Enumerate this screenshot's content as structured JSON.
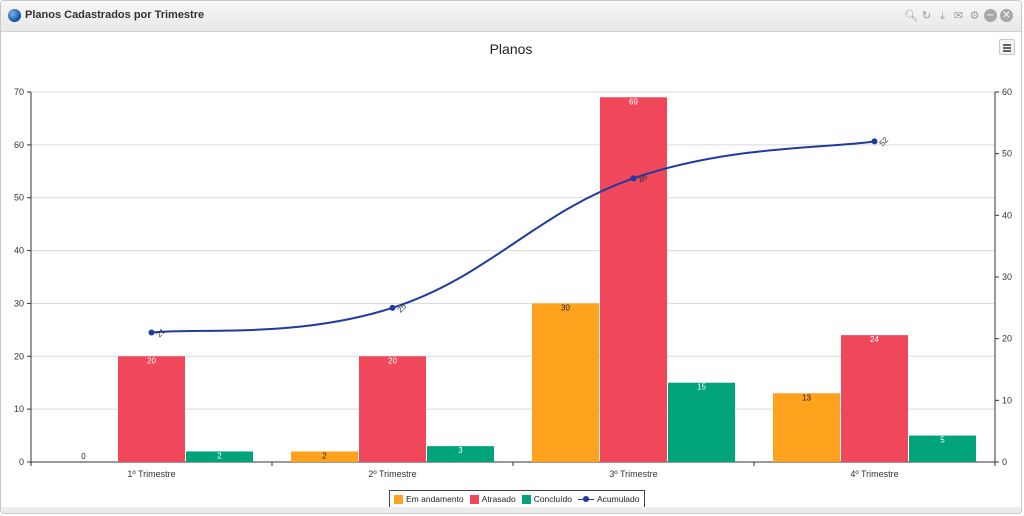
{
  "window": {
    "title": "Planos Cadastrados por Trimestre"
  },
  "toolbar_icons": [
    "search-icon",
    "refresh-icon",
    "download-icon",
    "mail-icon",
    "gear-icon",
    "minimize-icon",
    "close-icon"
  ],
  "chart_data": {
    "type": "bar",
    "title": "Planos",
    "categories": [
      "1º Trimestre",
      "2º Trimestre",
      "3º Trimestre",
      "4º Trimestre"
    ],
    "series": [
      {
        "name": "Em andamento",
        "type": "bar",
        "axis": "left",
        "color": "#ffa21e",
        "values": [
          0,
          2,
          30,
          13
        ]
      },
      {
        "name": "Atrasado",
        "type": "bar",
        "axis": "left",
        "color": "#f0475a",
        "values": [
          20,
          20,
          69,
          24
        ]
      },
      {
        "name": "Concluído",
        "type": "bar",
        "axis": "left",
        "color": "#00a37a",
        "values": [
          2,
          3,
          15,
          5
        ]
      },
      {
        "name": "Acumulado",
        "type": "line",
        "axis": "right",
        "color": "#1f3b9e",
        "values": [
          21,
          25,
          46,
          52
        ]
      }
    ],
    "y_left": {
      "min": 0,
      "max": 70,
      "ticks": [
        0,
        10,
        20,
        30,
        40,
        50,
        60,
        70
      ]
    },
    "y_right": {
      "min": 0,
      "max": 60,
      "ticks": [
        0,
        10,
        20,
        30,
        40,
        50,
        60
      ]
    },
    "grid": true,
    "legend_position": "bottom-center"
  }
}
